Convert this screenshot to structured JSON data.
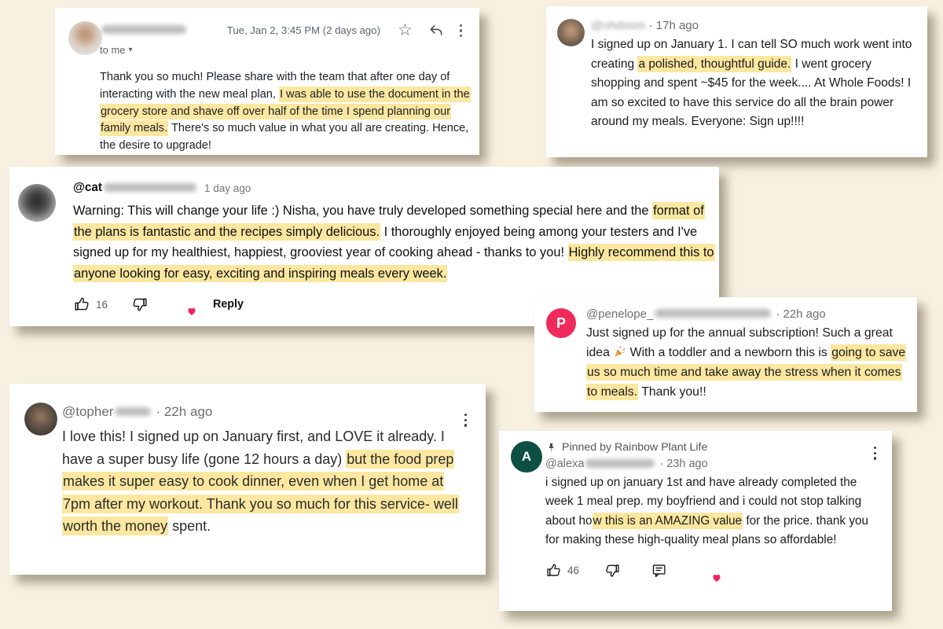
{
  "colors": {
    "page_background": "#f8f1e1",
    "card_background": "#ffffff",
    "highlight": "#fbe7a0",
    "penelope_avatar": "#ee2b5b",
    "alexa_avatar": "#0d4f43",
    "creator_heart": "#f4245e"
  },
  "glyphs": {
    "star": "☆",
    "caret_down": "▾"
  },
  "email_card": {
    "date": "Tue, Jan 2, 3:45 PM (2 days ago)",
    "to_label": "to me",
    "body_segments": [
      {
        "text": "Thank you so much! Please share with the team that after one day of interacting with the new meal plan, "
      },
      {
        "text": "I was able to use the document in the grocery store and shave off over half of the time I spend planning our family meals.",
        "highlight": true
      },
      {
        "text": " There's so much value in what you all are creating. Hence, the desire to upgrade!"
      }
    ]
  },
  "ohdoom_card": {
    "handle": "@ohdoom",
    "time": "· 17h ago",
    "body_segments": [
      {
        "text": "I signed up on January 1. I can tell SO much work went into creating "
      },
      {
        "text": "a polished, thoughtful guide.",
        "highlight": true
      },
      {
        "text": " I went grocery shopping and spent ~$45 for the week.... At Whole Foods!  I am so excited to have this service do all the brain power around my meals. Everyone: Sign up!!!!"
      }
    ]
  },
  "cat_card": {
    "handle_visible": "@cat",
    "time": "1 day ago",
    "like_count": "16",
    "reply_label": "Reply",
    "body_segments": [
      {
        "text": "Warning: This will change your life :) Nisha, you have truly developed something special here and the "
      },
      {
        "text": "format of the plans is fantastic and the recipes simply delicious.",
        "highlight": true
      },
      {
        "text": " I thoroughly enjoyed being among your testers and I've signed up for my healthiest, happiest, grooviest year of cooking ahead - thanks to you! "
      },
      {
        "text": "Highly recommend this to anyone looking for easy, exciting and inspiring meals every week.",
        "highlight": true
      }
    ]
  },
  "penelope_card": {
    "avatar_letter": "P",
    "handle_visible": "@penelope_",
    "time": "· 22h ago",
    "body_segments": [
      {
        "text": "Just signed up for the annual subscription! Such a great idea "
      },
      {
        "icon": "party-popper"
      },
      {
        "text": " With a toddler and a newborn this is "
      },
      {
        "text": "going to save us so much time and take away the stress when it comes to meals.",
        "highlight": true
      },
      {
        "text": " Thank you!!"
      }
    ]
  },
  "topher_card": {
    "handle_visible": "@topher",
    "time": "· 22h ago",
    "body_segments": [
      {
        "text": "I love this!  I signed up on January first, and LOVE it already.  I have a super busy life (gone 12 hours a day) "
      },
      {
        "text": "but the food prep makes it super easy to cook dinner, even when I get home at 7pm after my workout. Thank you so much for this service- well worth the money",
        "highlight": true
      },
      {
        "text": " spent."
      }
    ]
  },
  "alexa_card": {
    "avatar_letter": "A",
    "pinned_label": "Pinned by Rainbow Plant Life",
    "handle_visible": "@alexa",
    "time": "· 23h ago",
    "like_count": "46",
    "body_segments": [
      {
        "text": "i signed up on january 1st and have already completed the week 1 meal prep. my boyfriend and i could not stop talking about ho"
      },
      {
        "text": "w this is an AMAZING value",
        "highlight": true
      },
      {
        "text": " for the price. thank you for making these high-quality meal plans so affordable!"
      }
    ]
  }
}
